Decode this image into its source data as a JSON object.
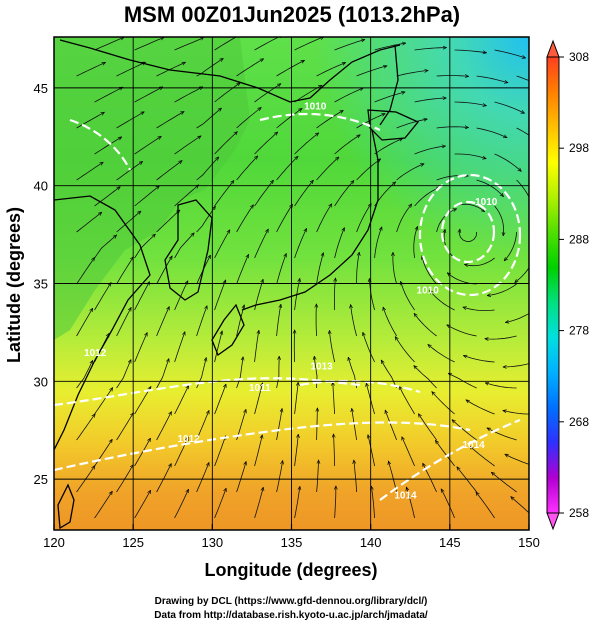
{
  "title": "MSM 00Z01Jun2025 (1013.2hPa)",
  "map": {
    "xlabel": "Longitude (degrees)",
    "ylabel": "Latitude  (degrees)",
    "x_range": [
      120,
      150
    ],
    "y_range": [
      22.4,
      47.6
    ],
    "x_ticks": [
      120,
      125,
      130,
      135,
      140,
      145,
      150
    ],
    "y_ticks": [
      25,
      30,
      35,
      40,
      45
    ],
    "contour_labels": [
      {
        "text": "1010",
        "lon": 136.5,
        "lat": 43.9
      },
      {
        "text": "1010",
        "lon": 143.6,
        "lat": 34.5
      },
      {
        "text": "1010",
        "lon": 147.3,
        "lat": 39.0
      },
      {
        "text": "1011",
        "lon": 133.0,
        "lat": 29.5
      },
      {
        "text": "1012",
        "lon": 122.6,
        "lat": 31.3
      },
      {
        "text": "1012",
        "lon": 128.5,
        "lat": 26.9
      },
      {
        "text": "1013",
        "lon": 136.9,
        "lat": 30.6
      },
      {
        "text": "1014",
        "lon": 142.2,
        "lat": 24.0
      },
      {
        "text": "1014",
        "lon": 146.5,
        "lat": 26.6
      }
    ]
  },
  "colorbar": {
    "min": 258,
    "max": 308,
    "ticks": [
      258,
      268,
      278,
      288,
      298,
      308
    ],
    "colors": [
      "#ff30ff",
      "#b000d0",
      "#3030ff",
      "#0070ff",
      "#00b0ff",
      "#00e0e0",
      "#00e080",
      "#00d000",
      "#50e000",
      "#b0f000",
      "#ffff00",
      "#ffc000",
      "#ff8000",
      "#ff4020"
    ]
  },
  "credits": [
    "Drawing by DCL (https://www.gfd-dennou.org/library/dcl/)",
    "Data from http://database.rish.kyoto-u.ac.jp/arch/jmadata/"
  ]
}
